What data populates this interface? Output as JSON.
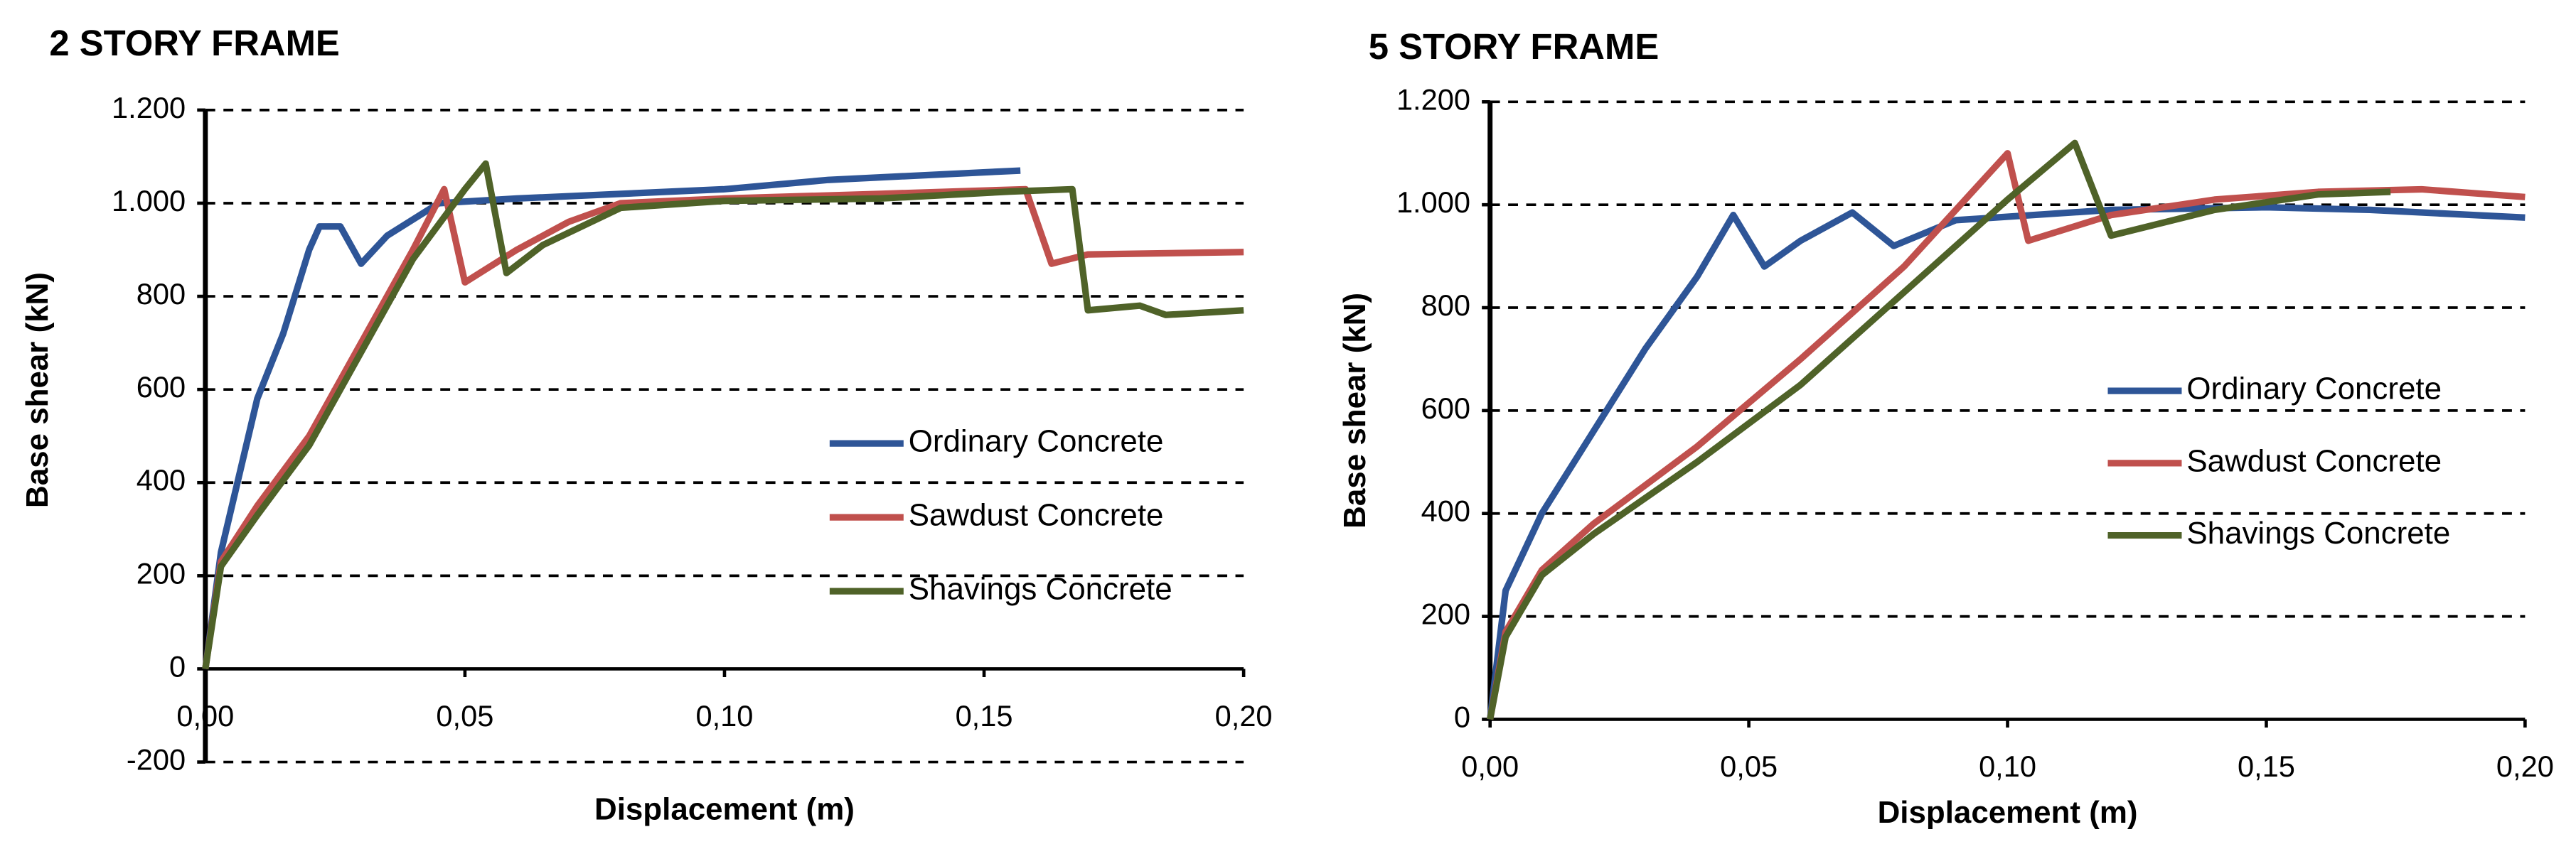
{
  "chart_data": [
    {
      "type": "line",
      "title": "2 STORY FRAME",
      "x_label": "Displacement (m)",
      "y_label": "Base shear (kN)",
      "xlim": [
        0,
        0.2
      ],
      "ylim": [
        -200,
        1200
      ],
      "xticks": [
        {
          "value": 0,
          "label": "0,00"
        },
        {
          "value": 0.05,
          "label": "0,05"
        },
        {
          "value": 0.1,
          "label": "0,10"
        },
        {
          "value": 0.15,
          "label": "0,15"
        },
        {
          "value": 0.2,
          "label": "0,20"
        }
      ],
      "yticks": [
        -200,
        0,
        200,
        400,
        600,
        800,
        {
          "value": 1000,
          "label": "1.000"
        },
        {
          "value": 1200,
          "label": "1.200"
        }
      ],
      "grid": true,
      "series": [
        {
          "name": "Ordinary Concrete",
          "color": "#2e5597",
          "x": [
            0,
            0.003,
            0.01,
            0.015,
            0.02,
            0.022,
            0.026,
            0.03,
            0.035,
            0.045,
            0.06,
            0.1,
            0.12,
            0.157
          ],
          "values": [
            0,
            250,
            580,
            720,
            900,
            950,
            950,
            870,
            930,
            1000,
            1010,
            1030,
            1050,
            1070
          ]
        },
        {
          "name": "Sawdust Concrete",
          "color": "#c0504d",
          "x": [
            0,
            0.003,
            0.01,
            0.02,
            0.03,
            0.04,
            0.046,
            0.05,
            0.06,
            0.07,
            0.08,
            0.1,
            0.13,
            0.158,
            0.163,
            0.17,
            0.2
          ],
          "values": [
            0,
            230,
            350,
            500,
            700,
            900,
            1030,
            830,
            900,
            960,
            1000,
            1010,
            1020,
            1030,
            870,
            890,
            895
          ]
        },
        {
          "name": "Shavings Concrete",
          "color": "#4f6228",
          "x": [
            0,
            0.003,
            0.01,
            0.02,
            0.03,
            0.04,
            0.05,
            0.054,
            0.058,
            0.065,
            0.08,
            0.1,
            0.13,
            0.155,
            0.167,
            0.17,
            0.18,
            0.185,
            0.2
          ],
          "values": [
            0,
            220,
            330,
            480,
            680,
            880,
            1030,
            1085,
            850,
            910,
            990,
            1005,
            1010,
            1025,
            1030,
            770,
            780,
            760,
            770
          ]
        }
      ]
    },
    {
      "type": "line",
      "title": "5 STORY FRAME",
      "x_label": "Displacement (m)",
      "y_label": "Base shear (kN)",
      "xlim": [
        0,
        0.2
      ],
      "ylim": [
        0,
        1200
      ],
      "xticks": [
        {
          "value": 0,
          "label": "0,00"
        },
        {
          "value": 0.05,
          "label": "0,05"
        },
        {
          "value": 0.1,
          "label": "0,10"
        },
        {
          "value": 0.15,
          "label": "0,15"
        },
        {
          "value": 0.2,
          "label": "0,20"
        }
      ],
      "yticks": [
        0,
        200,
        400,
        600,
        800,
        {
          "value": 1000,
          "label": "1.000"
        },
        {
          "value": 1200,
          "label": "1.200"
        }
      ],
      "grid": true,
      "series": [
        {
          "name": "Ordinary Concrete",
          "color": "#2e5597",
          "x": [
            0,
            0.003,
            0.01,
            0.02,
            0.03,
            0.04,
            0.047,
            0.053,
            0.06,
            0.07,
            0.078,
            0.09,
            0.12,
            0.15,
            0.17,
            0.2
          ],
          "values": [
            0,
            250,
            400,
            560,
            720,
            860,
            980,
            880,
            930,
            985,
            920,
            970,
            990,
            995,
            990,
            975
          ]
        },
        {
          "name": "Sawdust Concrete",
          "color": "#c0504d",
          "x": [
            0,
            0.003,
            0.01,
            0.02,
            0.04,
            0.06,
            0.08,
            0.1,
            0.104,
            0.12,
            0.14,
            0.16,
            0.18,
            0.2
          ],
          "values": [
            0,
            170,
            290,
            380,
            530,
            700,
            880,
            1100,
            930,
            980,
            1010,
            1025,
            1030,
            1015
          ]
        },
        {
          "name": "Shavings Concrete",
          "color": "#4f6228",
          "x": [
            0,
            0.003,
            0.01,
            0.02,
            0.04,
            0.06,
            0.08,
            0.1,
            0.113,
            0.12,
            0.14,
            0.16,
            0.174
          ],
          "values": [
            0,
            160,
            280,
            360,
            500,
            650,
            830,
            1010,
            1120,
            940,
            990,
            1020,
            1025
          ]
        }
      ]
    }
  ]
}
